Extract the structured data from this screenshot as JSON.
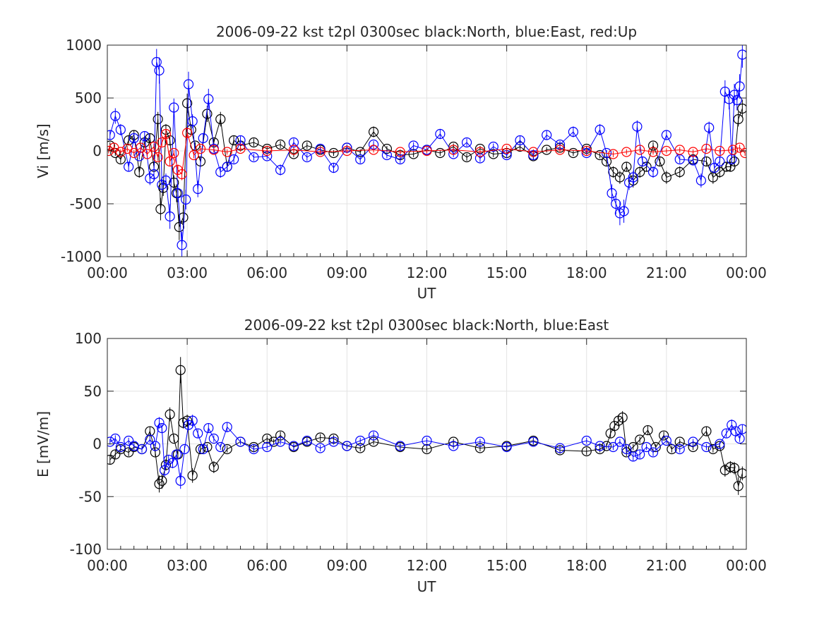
{
  "chart_data": [
    {
      "type": "scatter",
      "title": "2006-09-22 kst t2pl 0300sec black:North, blue:East, red:Up",
      "xlabel": "UT",
      "ylabel": "Vi [m/s]",
      "xlim": [
        "00:00",
        "24:00"
      ],
      "ylim": [
        -1000,
        1000
      ],
      "grid": true,
      "xticks": [
        "00:00",
        "03:00",
        "06:00",
        "09:00",
        "12:00",
        "15:00",
        "18:00",
        "21:00",
        "00:00"
      ],
      "yticks": [
        "-1000",
        "-500",
        "0",
        "500",
        "1000"
      ],
      "series_colors": [
        "#000000",
        "#0000ff",
        "#ff0000"
      ],
      "series": [
        {
          "key": "north",
          "color": "#000000",
          "x": [
            0.1,
            0.3,
            0.5,
            0.8,
            1.0,
            1.2,
            1.4,
            1.6,
            1.75,
            1.9,
            2.0,
            2.1,
            2.2,
            2.35,
            2.5,
            2.6,
            2.7,
            2.85,
            3.0,
            3.15,
            3.3,
            3.5,
            3.75,
            4.0,
            4.25,
            4.5,
            4.75,
            5.0,
            5.5,
            6.0,
            6.5,
            7.0,
            7.5,
            8.0,
            8.5,
            9.0,
            9.5,
            10.0,
            10.5,
            11.0,
            11.5,
            12.0,
            12.5,
            13.0,
            13.5,
            14.0,
            14.5,
            15.0,
            15.5,
            16.0,
            16.5,
            17.0,
            17.5,
            18.0,
            18.5,
            18.75,
            19.0,
            19.25,
            19.5,
            19.75,
            20.0,
            20.25,
            20.5,
            20.75,
            21.0,
            21.5,
            22.0,
            22.5,
            22.75,
            23.0,
            23.25,
            23.4,
            23.55,
            23.7,
            23.85
          ],
          "y": [
            50,
            -20,
            -80,
            100,
            150,
            -200,
            80,
            120,
            -150,
            300,
            -550,
            -350,
            200,
            100,
            -300,
            -400,
            -720,
            -630,
            450,
            200,
            50,
            -100,
            350,
            80,
            300,
            -150,
            100,
            50,
            80,
            20,
            60,
            -30,
            50,
            10,
            -20,
            30,
            -10,
            180,
            20,
            -40,
            -30,
            10,
            -20,
            40,
            -60,
            20,
            -30,
            -20,
            40,
            -50,
            10,
            30,
            -20,
            20,
            -40,
            -100,
            -200,
            -250,
            -150,
            -280,
            -200,
            -150,
            50,
            -100,
            -250,
            -200,
            -80,
            -100,
            -250,
            -200,
            -150,
            -150,
            -100,
            300,
            400
          ]
        },
        {
          "key": "east",
          "color": "#0000ff",
          "x": [
            0.1,
            0.3,
            0.5,
            0.8,
            1.0,
            1.2,
            1.4,
            1.6,
            1.75,
            1.85,
            1.95,
            2.05,
            2.2,
            2.35,
            2.5,
            2.65,
            2.8,
            2.95,
            3.05,
            3.2,
            3.4,
            3.6,
            3.8,
            4.0,
            4.25,
            4.5,
            4.75,
            5.0,
            5.5,
            6.0,
            6.5,
            7.0,
            7.5,
            8.0,
            8.5,
            9.0,
            9.5,
            10.0,
            10.5,
            11.0,
            11.5,
            12.0,
            12.5,
            13.0,
            13.5,
            14.0,
            14.5,
            15.0,
            15.5,
            16.0,
            16.5,
            17.0,
            17.5,
            18.0,
            18.5,
            18.75,
            18.95,
            19.1,
            19.25,
            19.4,
            19.6,
            19.75,
            19.9,
            20.1,
            20.5,
            21.0,
            21.5,
            22.0,
            22.3,
            22.6,
            22.8,
            23.0,
            23.2,
            23.35,
            23.45,
            23.55,
            23.65,
            23.75,
            23.85
          ],
          "y": [
            150,
            330,
            200,
            -150,
            120,
            -50,
            140,
            -260,
            -220,
            840,
            760,
            -320,
            -280,
            -620,
            410,
            -400,
            -890,
            -460,
            630,
            280,
            -360,
            120,
            490,
            20,
            -200,
            -150,
            -80,
            100,
            -60,
            -50,
            -180,
            80,
            -60,
            20,
            -160,
            30,
            -80,
            60,
            -40,
            -80,
            50,
            10,
            160,
            -30,
            80,
            -70,
            40,
            -40,
            100,
            -40,
            150,
            60,
            180,
            -20,
            200,
            -20,
            -400,
            -500,
            -590,
            -570,
            -300,
            -250,
            230,
            -100,
            -200,
            150,
            -80,
            -90,
            -280,
            220,
            -160,
            -100,
            560,
            490,
            -80,
            530,
            480,
            610,
            910
          ]
        },
        {
          "key": "up",
          "color": "#ff0000",
          "x": [
            0.05,
            0.25,
            0.5,
            0.75,
            1.0,
            1.25,
            1.5,
            1.75,
            1.9,
            2.05,
            2.2,
            2.35,
            2.5,
            2.65,
            2.8,
            3.0,
            3.25,
            3.5,
            4.0,
            4.5,
            5.0,
            6.0,
            7.0,
            8.0,
            9.0,
            10.0,
            11.0,
            12.0,
            13.0,
            14.0,
            15.0,
            16.0,
            17.0,
            18.0,
            19.0,
            19.5,
            20.0,
            20.5,
            21.0,
            21.5,
            22.0,
            22.5,
            23.0,
            23.5,
            23.75,
            23.95
          ],
          "y": [
            0,
            30,
            -10,
            20,
            -20,
            30,
            -30,
            40,
            -60,
            80,
            160,
            -100,
            -20,
            -180,
            -220,
            170,
            -40,
            20,
            10,
            -10,
            20,
            0,
            10,
            -10,
            0,
            10,
            -10,
            0,
            10,
            -10,
            20,
            -10,
            10,
            0,
            -30,
            -10,
            10,
            -10,
            0,
            10,
            -10,
            20,
            0,
            10,
            30,
            -20
          ]
        }
      ]
    },
    {
      "type": "scatter",
      "title": "2006-09-22 kst t2pl 0300sec black:North, blue:East",
      "xlabel": "UT",
      "ylabel": "E [mV/m]",
      "xlim": [
        "00:00",
        "24:00"
      ],
      "ylim": [
        -100,
        100
      ],
      "grid": true,
      "xticks": [
        "00:00",
        "03:00",
        "06:00",
        "09:00",
        "12:00",
        "15:00",
        "18:00",
        "21:00",
        "00:00"
      ],
      "yticks": [
        "-100",
        "-50",
        "0",
        "50",
        "100"
      ],
      "series": [
        {
          "key": "north",
          "color": "#000000",
          "x": [
            0.1,
            0.3,
            0.5,
            0.8,
            1.0,
            1.3,
            1.6,
            1.8,
            1.95,
            2.05,
            2.2,
            2.35,
            2.5,
            2.65,
            2.75,
            2.85,
            3.0,
            3.2,
            3.5,
            3.75,
            4.0,
            4.5,
            5.0,
            5.5,
            6.0,
            6.25,
            6.5,
            7.0,
            7.5,
            8.0,
            8.5,
            9.0,
            9.5,
            10.0,
            11.0,
            12.0,
            13.0,
            14.0,
            15.0,
            16.0,
            17.0,
            18.0,
            18.5,
            18.75,
            18.9,
            19.05,
            19.2,
            19.35,
            19.5,
            19.75,
            20.0,
            20.3,
            20.6,
            20.9,
            21.2,
            21.5,
            22.0,
            22.5,
            22.75,
            23.0,
            23.2,
            23.4,
            23.55,
            23.7,
            23.85
          ],
          "y": [
            -15,
            -10,
            -5,
            -8,
            -3,
            -5,
            12,
            -8,
            -38,
            -35,
            -20,
            28,
            5,
            -10,
            70,
            20,
            22,
            -30,
            -5,
            -3,
            -22,
            -5,
            2,
            -3,
            5,
            2,
            8,
            -3,
            2,
            6,
            5,
            -2,
            -4,
            2,
            -3,
            -5,
            2,
            -4,
            -2,
            3,
            -6,
            -7,
            -5,
            -2,
            10,
            17,
            22,
            25,
            -8,
            -3,
            4,
            13,
            -3,
            8,
            -5,
            2,
            -3,
            12,
            -5,
            -2,
            -25,
            -22,
            -23,
            -40,
            -28
          ]
        },
        {
          "key": "east",
          "color": "#0000ff",
          "x": [
            0.1,
            0.3,
            0.5,
            0.8,
            1.0,
            1.3,
            1.6,
            1.8,
            1.95,
            2.05,
            2.15,
            2.3,
            2.45,
            2.6,
            2.75,
            2.9,
            3.05,
            3.2,
            3.4,
            3.6,
            3.8,
            4.0,
            4.25,
            4.5,
            5.0,
            5.5,
            6.0,
            6.5,
            7.0,
            7.5,
            8.0,
            8.5,
            9.0,
            9.5,
            10.0,
            11.0,
            12.0,
            13.0,
            14.0,
            15.0,
            16.0,
            17.0,
            18.0,
            18.5,
            19.0,
            19.25,
            19.5,
            19.75,
            20.0,
            20.25,
            20.5,
            21.0,
            21.5,
            22.0,
            22.5,
            23.0,
            23.25,
            23.45,
            23.6,
            23.75,
            23.85
          ],
          "y": [
            2,
            5,
            -3,
            3,
            -2,
            -5,
            4,
            -2,
            20,
            15,
            -25,
            -15,
            -18,
            -10,
            -35,
            -5,
            18,
            22,
            10,
            -5,
            15,
            5,
            -3,
            16,
            2,
            -5,
            -3,
            2,
            -2,
            3,
            -4,
            2,
            -2,
            3,
            8,
            -2,
            3,
            -2,
            2,
            -3,
            2,
            -4,
            3,
            -2,
            -3,
            2,
            -5,
            -12,
            -10,
            -3,
            -8,
            3,
            -5,
            2,
            -3,
            0,
            10,
            18,
            12,
            5,
            14
          ]
        }
      ]
    }
  ]
}
